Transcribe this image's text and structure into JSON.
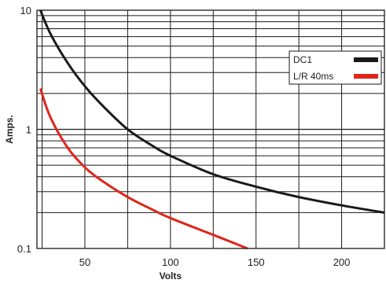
{
  "chart_data": {
    "type": "line",
    "title": "",
    "xlabel": "Volts",
    "ylabel": "Amps.",
    "xlim": [
      22,
      225
    ],
    "ylim": [
      0.1,
      10
    ],
    "y_scale": "log",
    "x_ticks": [
      50,
      100,
      150,
      200
    ],
    "x_tick_labels": [
      "50",
      "100",
      "150",
      "200"
    ],
    "y_ticks": [
      0.1,
      1,
      10
    ],
    "y_tick_labels": [
      "0.1",
      "1",
      "10"
    ],
    "grid": true,
    "legend_position": "top-right",
    "series": [
      {
        "name": "DC1",
        "color": "#1a1a1a",
        "x": [
          24,
          30,
          40,
          50,
          60,
          75,
          90,
          100,
          125,
          150,
          175,
          200,
          225
        ],
        "y": [
          10,
          6.3,
          3.6,
          2.3,
          1.6,
          1.0,
          0.72,
          0.6,
          0.42,
          0.33,
          0.27,
          0.23,
          0.2
        ]
      },
      {
        "name": "L/R 40ms",
        "color": "#e0251b",
        "x": [
          24,
          30,
          40,
          50,
          60,
          75,
          90,
          100,
          125,
          145
        ],
        "y": [
          2.2,
          1.25,
          0.7,
          0.48,
          0.37,
          0.27,
          0.21,
          0.18,
          0.13,
          0.1
        ]
      }
    ]
  }
}
